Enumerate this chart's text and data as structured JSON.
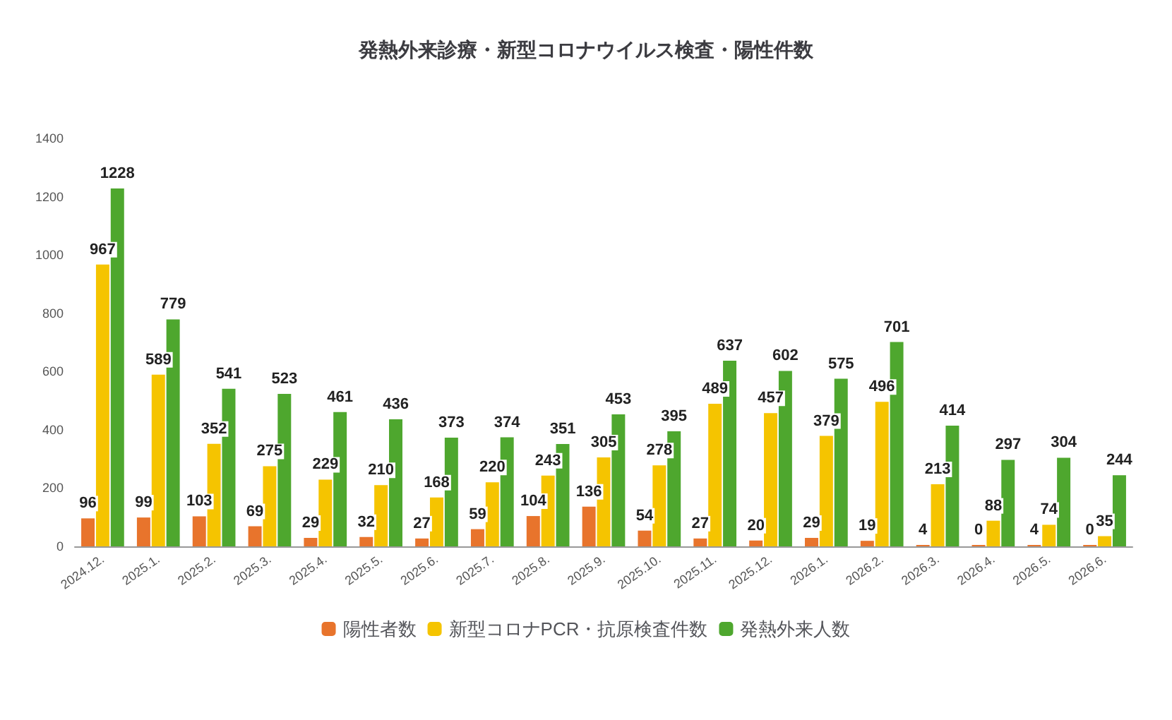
{
  "chart_data": {
    "type": "bar",
    "title": "発熱外来診療・新型コロナウイルス検査・陽性件数",
    "categories": [
      "2024.12.",
      "2025.1.",
      "2025.2.",
      "2025.3.",
      "2025.4.",
      "2025.5.",
      "2025.6.",
      "2025.7.",
      "2025.8.",
      "2025.9.",
      "2025.10.",
      "2025.11.",
      "2025.12.",
      "2026.1.",
      "2026.2.",
      "2026.3.",
      "2026.4.",
      "2026.5.",
      "2026.6."
    ],
    "series": [
      {
        "name": "陽性者数",
        "color": "#e8742c",
        "values": [
          96,
          99,
          103,
          69,
          29,
          32,
          27,
          59,
          104,
          136,
          54,
          27,
          20,
          29,
          19,
          4,
          0,
          4,
          0
        ]
      },
      {
        "name": "新型コロナPCR・抗原検査件数",
        "color": "#f5c400",
        "values": [
          967,
          589,
          352,
          275,
          229,
          210,
          168,
          220,
          243,
          305,
          278,
          489,
          457,
          379,
          496,
          213,
          88,
          74,
          35
        ]
      },
      {
        "name": "発熱外来人数",
        "color": "#4ea72e",
        "values": [
          1228,
          779,
          541,
          523,
          461,
          436,
          373,
          374,
          351,
          453,
          395,
          637,
          602,
          575,
          701,
          414,
          297,
          304,
          244
        ]
      }
    ],
    "ylim": [
      0,
      1400
    ],
    "yticks": [
      0,
      200,
      400,
      600,
      800,
      1000,
      1200,
      1400
    ],
    "data_labels": true,
    "legend": "bottom",
    "grid": false
  }
}
